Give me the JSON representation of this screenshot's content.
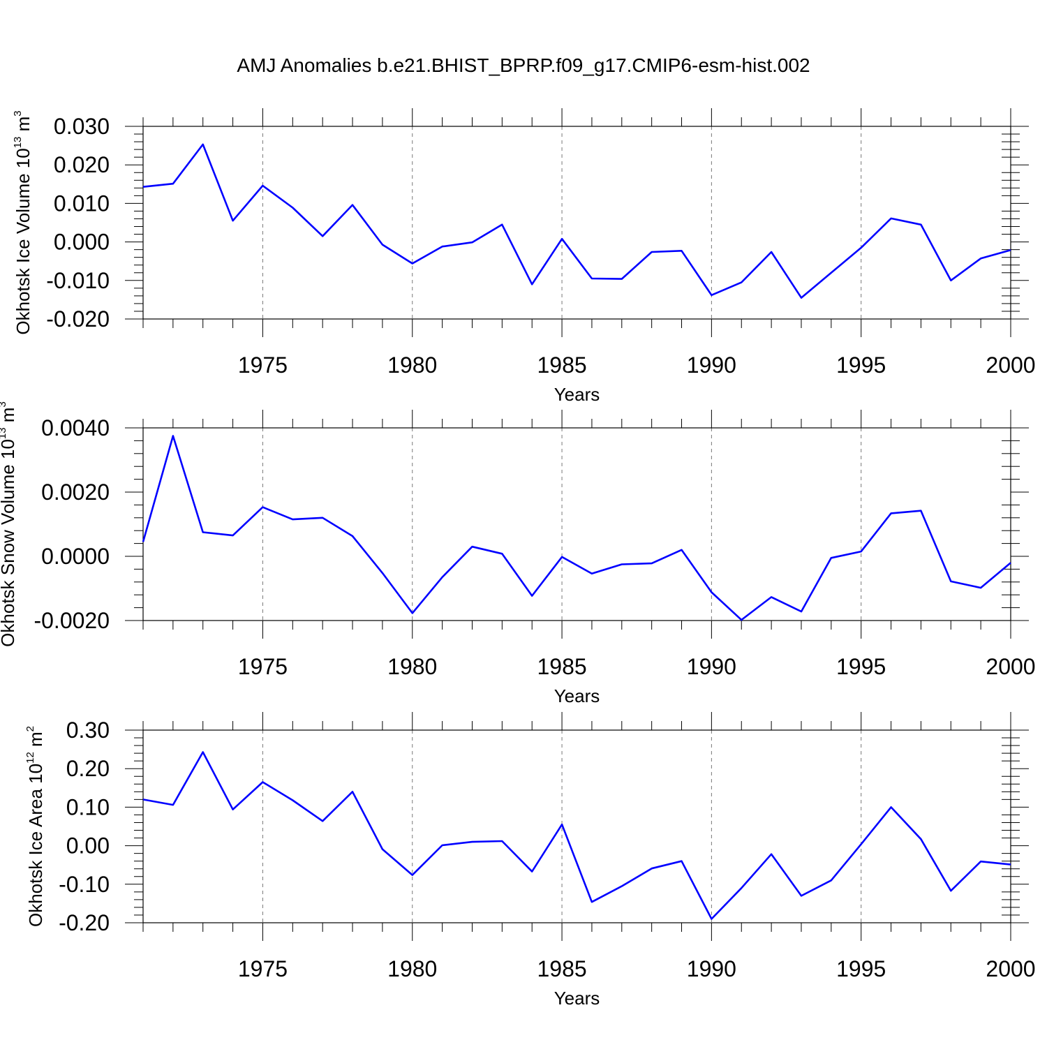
{
  "title": "AMJ Anomalies b.e21.BHIST_BPRP.f09_g17.CMIP6-esm-hist.002",
  "line_color": "#0000ff",
  "chart_data": [
    {
      "type": "line",
      "ylabel": "Okhotsk Ice Volume 10",
      "ylabel_sup": "13",
      "ylabel_unit": " m",
      "ylabel_unit_sup": "3",
      "xlabel": "Years",
      "xlim": [
        1971,
        2000
      ],
      "ylim": [
        -0.02,
        0.03
      ],
      "yticks": [
        -0.02,
        -0.01,
        0.0,
        0.01,
        0.02,
        0.03
      ],
      "yticklabels": [
        "-0.020",
        "-0.010",
        "0.000",
        "0.010",
        "0.020",
        "0.030"
      ],
      "xticks": [
        1975,
        1980,
        1985,
        1990,
        1995,
        2000
      ],
      "xticklabels": [
        "1975",
        "1980",
        "1985",
        "1990",
        "1995",
        "2000"
      ],
      "x": [
        1971,
        1972,
        1973,
        1974,
        1975,
        1976,
        1977,
        1978,
        1979,
        1980,
        1981,
        1982,
        1983,
        1984,
        1985,
        1986,
        1987,
        1988,
        1989,
        1990,
        1991,
        1992,
        1993,
        1994,
        1995,
        1996,
        1997,
        1998,
        1999,
        2000
      ],
      "values": [
        0.0143,
        0.0151,
        0.0253,
        0.0055,
        0.0146,
        0.0089,
        0.0015,
        0.0096,
        -0.0007,
        -0.0056,
        -0.0012,
        -0.0001,
        0.0045,
        -0.011,
        0.0008,
        -0.0095,
        -0.0096,
        -0.0026,
        -0.0023,
        -0.0138,
        -0.0105,
        -0.0026,
        -0.0145,
        -0.008,
        -0.0015,
        0.0061,
        0.0045,
        -0.01,
        -0.0043,
        -0.0021
      ]
    },
    {
      "type": "line",
      "ylabel": "Okhotsk Snow Volume 10",
      "ylabel_sup": "13",
      "ylabel_unit": " m",
      "ylabel_unit_sup": "3",
      "xlabel": "Years",
      "xlim": [
        1971,
        2000
      ],
      "ylim": [
        -0.002,
        0.004
      ],
      "yticks": [
        -0.002,
        0.0,
        0.002,
        0.004
      ],
      "yticklabels": [
        "-0.0020",
        "0.0000",
        "0.0020",
        "0.0040"
      ],
      "xticks": [
        1975,
        1980,
        1985,
        1990,
        1995,
        2000
      ],
      "xticklabels": [
        "1975",
        "1980",
        "1985",
        "1990",
        "1995",
        "2000"
      ],
      "x": [
        1971,
        1972,
        1973,
        1974,
        1975,
        1976,
        1977,
        1978,
        1979,
        1980,
        1981,
        1982,
        1983,
        1984,
        1985,
        1986,
        1987,
        1988,
        1989,
        1990,
        1991,
        1992,
        1993,
        1994,
        1995,
        1996,
        1997,
        1998,
        1999,
        2000
      ],
      "values": [
        0.00045,
        0.00375,
        0.00075,
        0.00065,
        0.00153,
        0.00115,
        0.0012,
        0.00063,
        -0.00052,
        -0.00177,
        -0.00065,
        0.0003,
        8e-05,
        -0.00123,
        -2e-05,
        -0.00054,
        -0.00025,
        -0.00022,
        0.0002,
        -0.00112,
        -0.00198,
        -0.00127,
        -0.00172,
        -5e-05,
        0.00015,
        0.00134,
        0.00142,
        -0.00078,
        -0.00098,
        -0.0002
      ]
    },
    {
      "type": "line",
      "ylabel": "Okhotsk Ice Area 10",
      "ylabel_sup": "12",
      "ylabel_unit": " m",
      "ylabel_unit_sup": "2",
      "xlabel": "Years",
      "xlim": [
        1971,
        2000
      ],
      "ylim": [
        -0.2,
        0.3
      ],
      "yticks": [
        -0.2,
        -0.1,
        0.0,
        0.1,
        0.2,
        0.3
      ],
      "yticklabels": [
        "-0.20",
        "-0.10",
        "0.00",
        "0.10",
        "0.20",
        "0.30"
      ],
      "xticks": [
        1975,
        1980,
        1985,
        1990,
        1995,
        2000
      ],
      "xticklabels": [
        "1975",
        "1980",
        "1985",
        "1990",
        "1995",
        "2000"
      ],
      "x": [
        1971,
        1972,
        1973,
        1974,
        1975,
        1976,
        1977,
        1978,
        1979,
        1980,
        1981,
        1982,
        1983,
        1984,
        1985,
        1986,
        1987,
        1988,
        1989,
        1990,
        1991,
        1992,
        1993,
        1994,
        1995,
        1996,
        1997,
        1998,
        1999,
        2000
      ],
      "values": [
        0.12,
        0.106,
        0.243,
        0.094,
        0.165,
        0.118,
        0.064,
        0.14,
        -0.009,
        -0.076,
        0.001,
        0.01,
        0.012,
        -0.067,
        0.055,
        -0.146,
        -0.105,
        -0.059,
        -0.04,
        -0.19,
        -0.11,
        -0.022,
        -0.13,
        -0.09,
        0.004,
        0.1,
        0.017,
        -0.117,
        -0.041,
        -0.049
      ]
    }
  ]
}
